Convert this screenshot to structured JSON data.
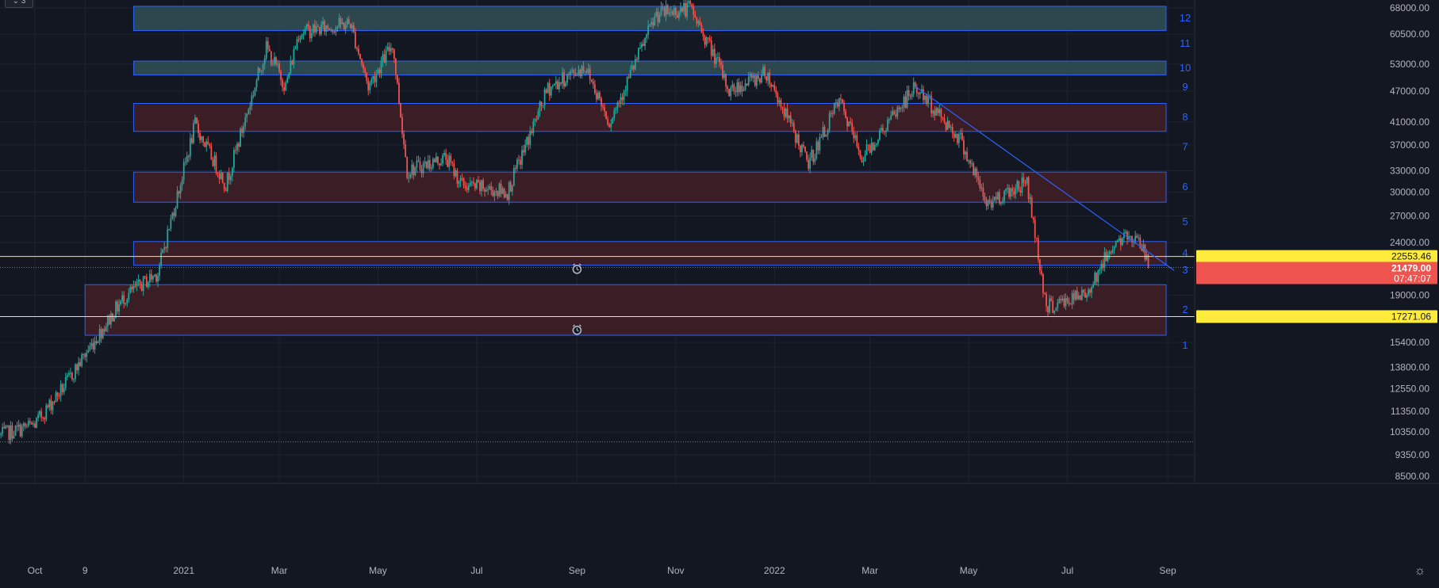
{
  "top_badge": "⌄ 3",
  "settings_icon": "☼",
  "colors": {
    "background": "#131722",
    "grid": "#1f2330",
    "up": "#26a69a",
    "down": "#ef5350",
    "zone_border": "#2962ff",
    "supply_fill": "#3d1e26",
    "teal_fill": "#2e4a52",
    "trendline": "#2962ff",
    "horizontal_level": "#ffeb3b"
  },
  "chart_data": {
    "type": "candlestick",
    "symbol_pair": "BTC",
    "y_scale": "log",
    "ylim": [
      8000,
      70000
    ],
    "y_ticks": [
      68000,
      60500,
      53000,
      47000,
      41000,
      37000,
      33000,
      30000,
      27000,
      24000,
      19000,
      15400,
      13800,
      12550,
      11350,
      10350,
      9350,
      8500
    ],
    "x_tick_labels": [
      {
        "date": "2020-10-01",
        "label": "Oct"
      },
      {
        "date": "2020-11-01",
        "label": "9"
      },
      {
        "date": "2021-01-01",
        "label": "2021"
      },
      {
        "date": "2021-03-01",
        "label": "Mar"
      },
      {
        "date": "2021-05-01",
        "label": "May"
      },
      {
        "date": "2021-07-01",
        "label": "Jul"
      },
      {
        "date": "2021-09-01",
        "label": "Sep"
      },
      {
        "date": "2021-11-01",
        "label": "Nov"
      },
      {
        "date": "2022-01-01",
        "label": "2022"
      },
      {
        "date": "2022-03-01",
        "label": "Mar"
      },
      {
        "date": "2022-05-01",
        "label": "May"
      },
      {
        "date": "2022-07-01",
        "label": "Jul"
      },
      {
        "date": "2022-09-01",
        "label": "Sep"
      }
    ],
    "key_points": [
      [
        "2020-09-10",
        10200
      ],
      [
        "2020-10-01",
        10700
      ],
      [
        "2020-10-20",
        12800
      ],
      [
        "2020-11-06",
        15400
      ],
      [
        "2020-11-25",
        18800
      ],
      [
        "2020-12-16",
        21000
      ],
      [
        "2021-01-08",
        40500
      ],
      [
        "2021-01-27",
        31000
      ],
      [
        "2021-02-21",
        57000
      ],
      [
        "2021-03-05",
        48000
      ],
      [
        "2021-03-13",
        61000
      ],
      [
        "2021-04-14",
        63500
      ],
      [
        "2021-04-25",
        48000
      ],
      [
        "2021-05-10",
        58000
      ],
      [
        "2021-05-19",
        33000
      ],
      [
        "2021-06-12",
        35000
      ],
      [
        "2021-06-22",
        31000
      ],
      [
        "2021-07-20",
        30000
      ],
      [
        "2021-08-14",
        47500
      ],
      [
        "2021-09-06",
        52500
      ],
      [
        "2021-09-21",
        41000
      ],
      [
        "2021-10-20",
        66000
      ],
      [
        "2021-11-10",
        68000
      ],
      [
        "2021-11-26",
        54000
      ],
      [
        "2021-12-04",
        47000
      ],
      [
        "2021-12-27",
        51000
      ],
      [
        "2022-01-22",
        34000
      ],
      [
        "2022-02-10",
        45000
      ],
      [
        "2022-02-24",
        35000
      ],
      [
        "2022-03-29",
        47800
      ],
      [
        "2022-04-26",
        38000
      ],
      [
        "2022-05-12",
        28500
      ],
      [
        "2022-06-06",
        31500
      ],
      [
        "2022-06-18",
        18000
      ],
      [
        "2022-07-12",
        19000
      ],
      [
        "2022-07-30",
        24000
      ],
      [
        "2022-08-14",
        24800
      ],
      [
        "2022-08-20",
        21479
      ]
    ],
    "zones": [
      {
        "label": "12",
        "from": "2020-12-01",
        "to": "2022-08-31",
        "low": 61500,
        "high": 68500,
        "kind": "teal"
      },
      {
        "label": "10",
        "from": "2020-12-01",
        "to": "2022-08-31",
        "low": 50500,
        "high": 53700,
        "kind": "teal"
      },
      {
        "label": "8",
        "from": "2020-12-01",
        "to": "2022-08-31",
        "low": 39300,
        "high": 44500,
        "kind": "supply"
      },
      {
        "label": "6",
        "from": "2020-12-01",
        "to": "2022-08-31",
        "low": 28700,
        "high": 32800,
        "kind": "supply"
      },
      {
        "label": "4",
        "from": "2020-12-01",
        "to": "2022-08-31",
        "low": 21700,
        "high": 24100,
        "kind": "supply"
      },
      {
        "label": "2",
        "from": "2020-11-01",
        "to": "2022-08-31",
        "low": 15900,
        "high": 19900,
        "kind": "supply"
      }
    ],
    "zone_numbers": [
      {
        "label": "11",
        "value": 58000
      },
      {
        "label": "9",
        "value": 47800
      },
      {
        "label": "7",
        "value": 36700
      },
      {
        "label": "5",
        "value": 26300
      },
      {
        "label": "3",
        "value": 21200
      },
      {
        "label": "1",
        "value": 15200
      }
    ],
    "horizontal_levels": [
      {
        "value": 22553.46,
        "label": "22553.46"
      },
      {
        "value": 17271.06,
        "label": "17271.06"
      }
    ],
    "current_price": {
      "label": "21479.00",
      "timer": "07:47:07",
      "value": 21479
    },
    "dotted_levels": [
      21479,
      9900
    ],
    "trendline": {
      "from": [
        "2022-03-29",
        48000
      ],
      "to": [
        "2022-09-05",
        21200
      ]
    },
    "alerts": [
      {
        "date": "2021-09-01",
        "value": 21300
      },
      {
        "date": "2021-09-01",
        "value": 16250
      }
    ]
  }
}
